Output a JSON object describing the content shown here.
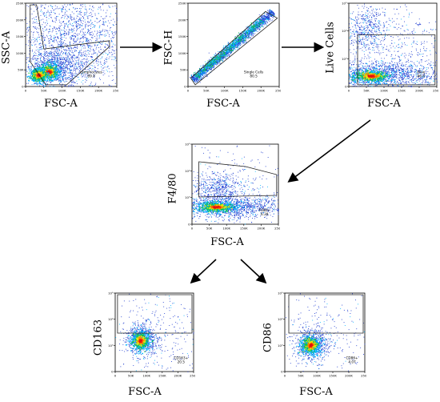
{
  "panels": {
    "lymph": {
      "ylabel": "SSC-A",
      "xlabel": "FSC-A",
      "yticks": [
        "250K",
        "200K",
        "150K",
        "100K",
        "50K",
        "0"
      ],
      "xticks": [
        "0",
        "50K",
        "100K",
        "150K",
        "200K",
        "250K"
      ],
      "gate_name": "Lymphocytes",
      "gate_value": "89.4"
    },
    "single": {
      "ylabel": "FSC-H",
      "xlabel": "FSC-A",
      "yticks": [
        "250K",
        "200K",
        "150K",
        "100K",
        "50K",
        "0"
      ],
      "xticks": [
        "0",
        "50K",
        "100K",
        "150K",
        "200K",
        "250K"
      ],
      "gate_name": "Single Cells",
      "gate_value": "80.5"
    },
    "live": {
      "ylabel": "Live Cells",
      "xlabel": "FSC-A",
      "yticks": [
        "10⁵",
        "10⁴",
        "10³",
        "0"
      ],
      "xticks": [
        "0",
        "50K",
        "100K",
        "150K",
        "200K",
        "250K"
      ],
      "gate_name": "Alive",
      "gate_value": "96.4"
    },
    "f480": {
      "ylabel": "F4/80",
      "xlabel": "FSC-A",
      "yticks": [
        "10⁵",
        "10⁴",
        "10³",
        "0"
      ],
      "xticks": [
        "0",
        "50K",
        "100K",
        "150K",
        "200K",
        "250K"
      ],
      "gate_name": "F480+",
      "gate_value": "6.39"
    },
    "cd163": {
      "ylabel": "CD163",
      "xlabel": "FSC-A",
      "yticks": [
        "10⁵",
        "10⁴",
        "10³",
        "0"
      ],
      "xticks": [
        "0",
        "50K",
        "100K",
        "150K",
        "200K",
        "250K"
      ],
      "gate_name": "CD163+",
      "gate_value": "20.5"
    },
    "cd86": {
      "ylabel": "CD86",
      "xlabel": "FSC-A",
      "yticks": [
        "10⁵",
        "10⁴",
        "10³",
        "0"
      ],
      "xticks": [
        "0",
        "50K",
        "100K",
        "150K",
        "200K",
        "250K"
      ],
      "gate_name": "CD86+",
      "gate_value": "4.07"
    }
  },
  "colors": {
    "density": [
      "#1e3ccf",
      "#00b4ff",
      "#12c24a",
      "#f2e40a",
      "#ff6a00",
      "#e01010"
    ],
    "gate_line": "#222222",
    "arrow": "#000000"
  }
}
